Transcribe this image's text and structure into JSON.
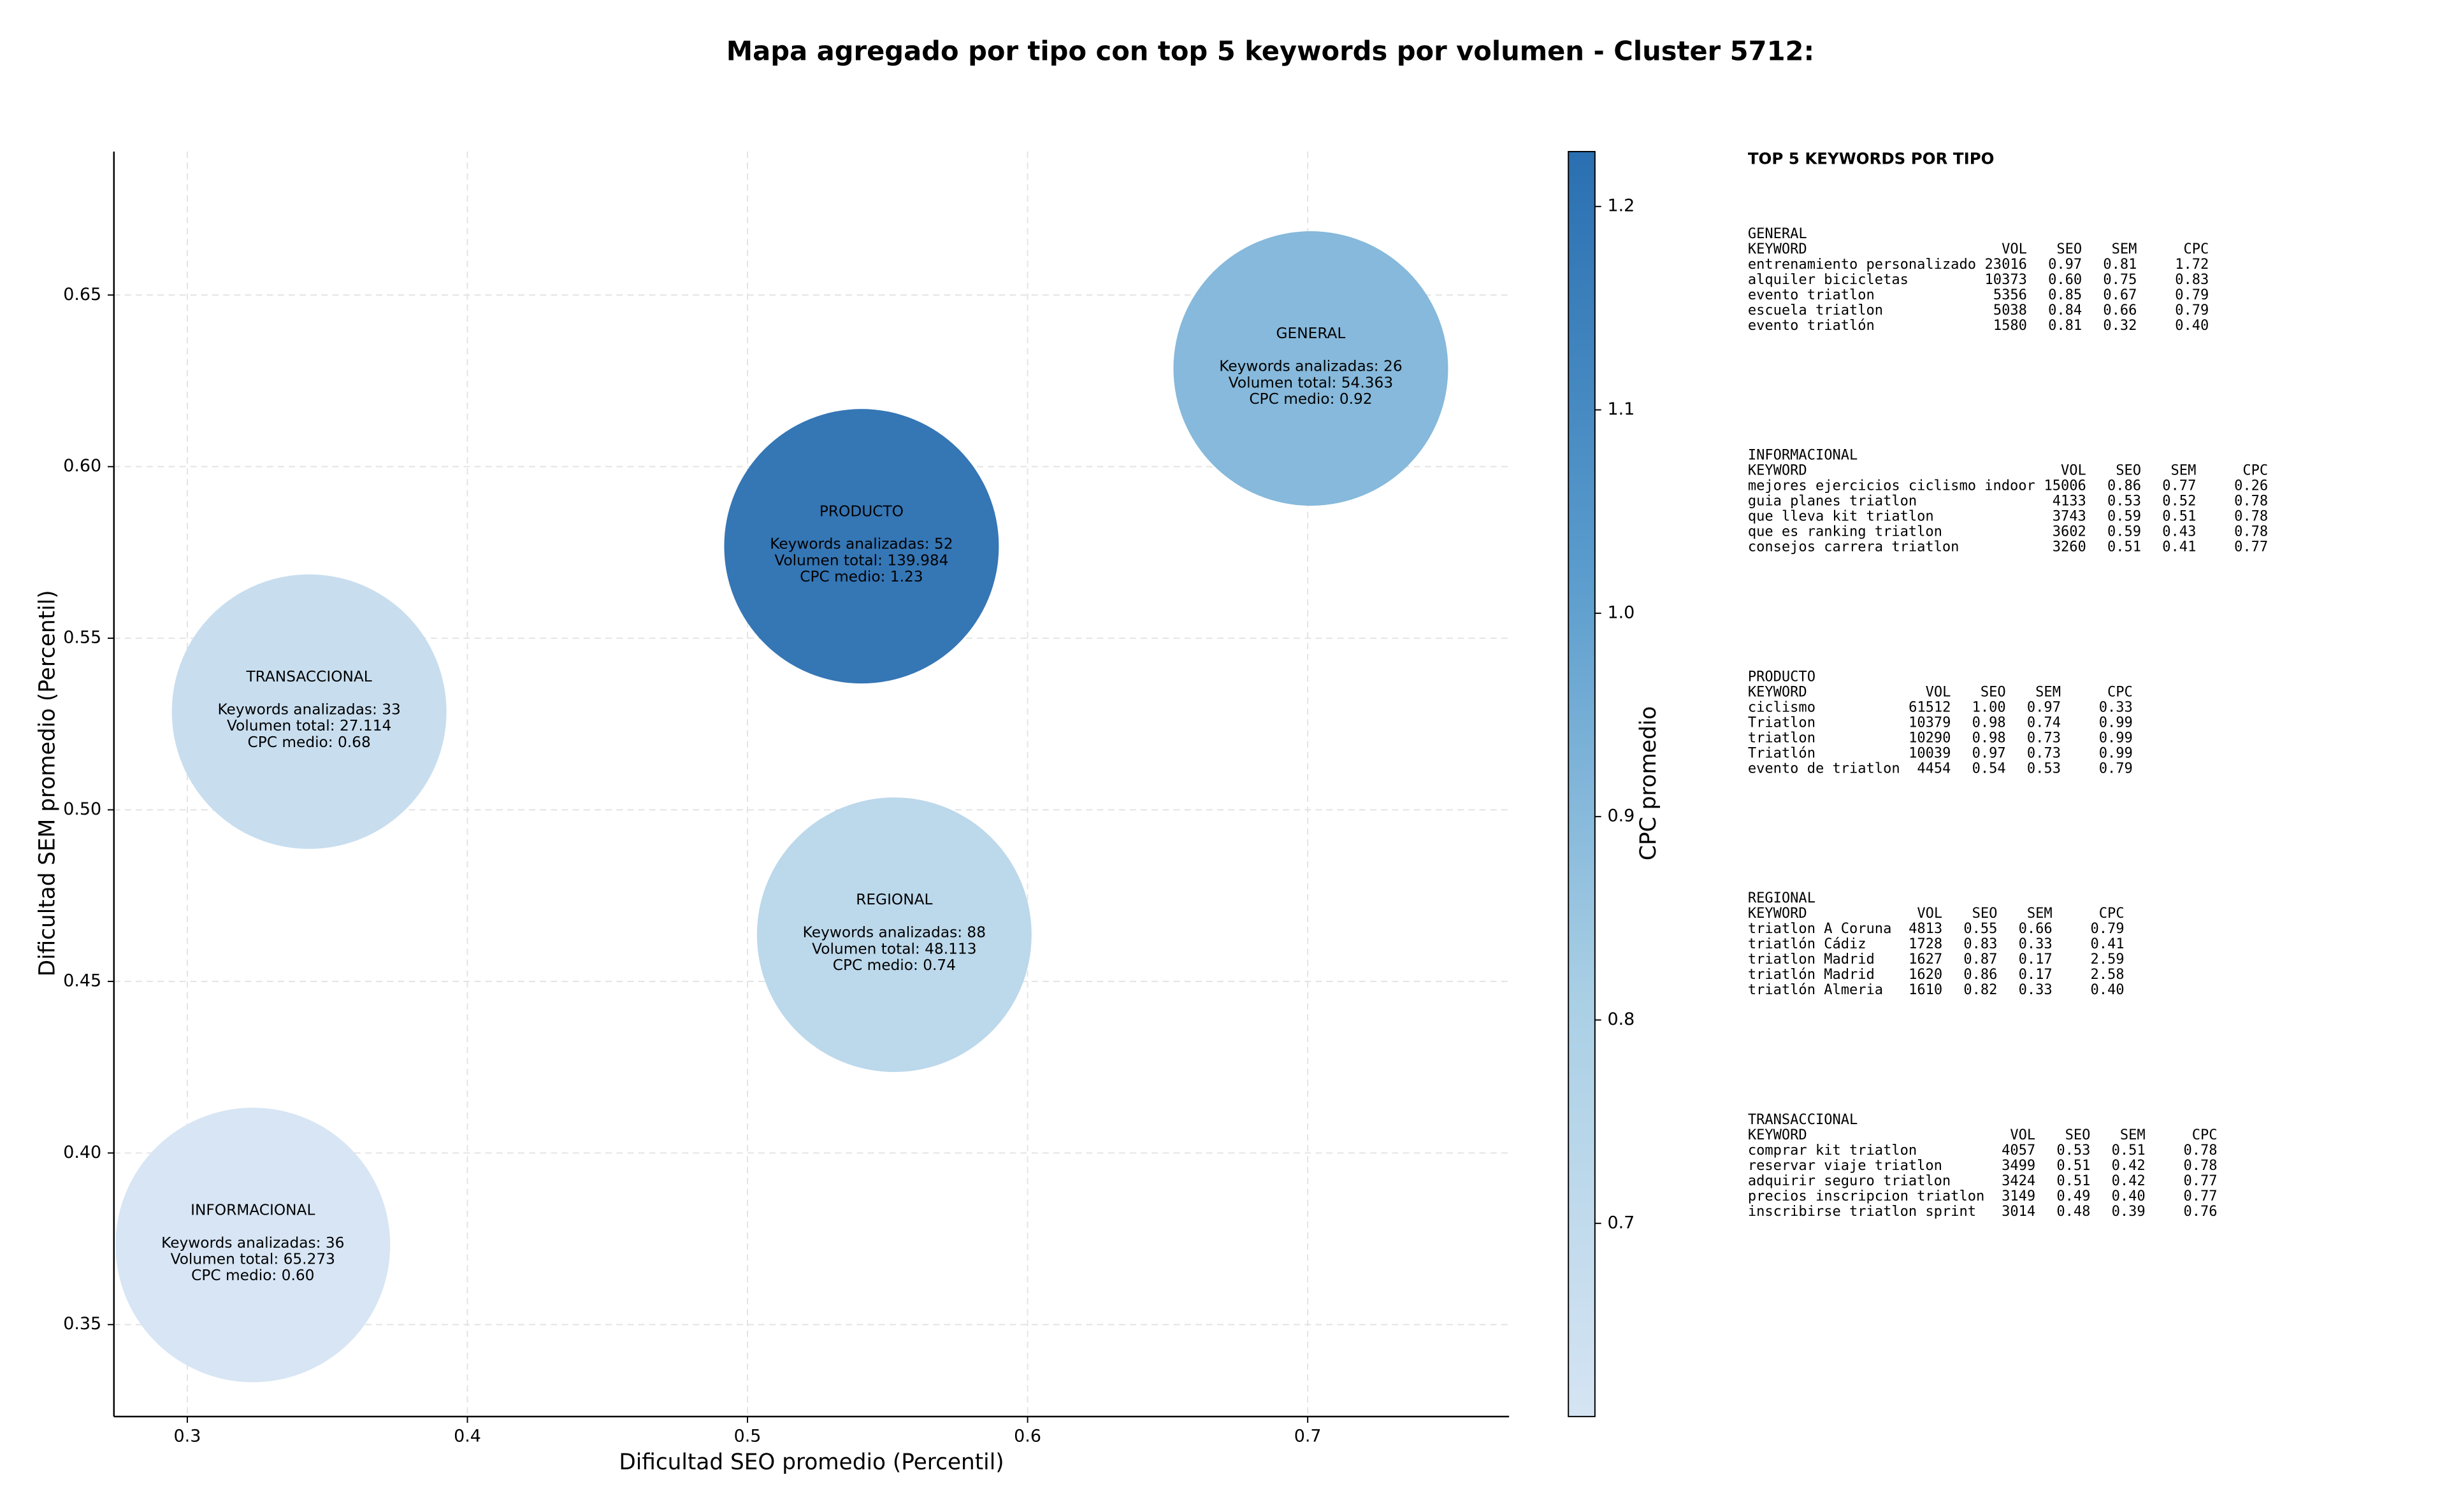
{
  "chart_data": {
    "type": "bubble",
    "title": "Mapa agregado por tipo con top 5 keywords por volumen - Cluster 5712:",
    "xlabel": "Dificultad SEO promedio (Percentil)",
    "ylabel": "Dificultad SEM promedio (Percentil)",
    "xlim": [
      0.2738,
      0.7719
    ],
    "ylim": [
      0.3232,
      0.6918
    ],
    "xticks": [
      0.3,
      0.4,
      0.5,
      0.6,
      0.7
    ],
    "yticks": [
      0.35,
      {
        "value": 0.4,
        "label": "0.40"
      },
      0.45,
      {
        "value": 0.5,
        "label": "0.50"
      },
      0.55,
      {
        "value": 0.6,
        "label": "0.60"
      },
      0.65
    ],
    "grid": true,
    "categories": [
      "GENERAL",
      "PRODUCTO",
      "TRANSACCIONAL",
      "REGIONAL",
      "INFORMACIONAL"
    ],
    "x": [
      0.7011,
      0.5407,
      0.3435,
      0.5524,
      0.3234
    ],
    "y": [
      0.6286,
      0.5768,
      0.5286,
      0.4636,
      0.3732
    ],
    "cpc": [
      0.92,
      1.23,
      0.68,
      0.74,
      0.6
    ],
    "annotations": [
      [
        "Keywords analizadas: 26",
        "Volumen total: 54.363",
        "CPC medio: 0.92"
      ],
      [
        "Keywords analizadas: 52",
        "Volumen total: 139.984",
        "CPC medio: 1.23"
      ],
      [
        "Keywords analizadas: 33",
        "Volumen total: 27.114",
        "CPC medio: 0.68"
      ],
      [
        "Keywords analizadas: 88",
        "Volumen total: 48.113",
        "CPC medio: 0.74"
      ],
      [
        "Keywords analizadas: 36",
        "Volumen total: 65.273",
        "CPC medio: 0.60"
      ]
    ],
    "colorbar": {
      "label": "CPC promedio",
      "clim": [
        0.605,
        1.227
      ],
      "ticks": [
        0.7,
        0.8,
        0.9,
        {
          "value": 1,
          "label": "1.0"
        },
        1.1,
        1.2
      ],
      "colormap": [
        "#d5e4f3",
        "#a9cfe5",
        "#5a9ccd",
        "#2a6fb1"
      ]
    }
  },
  "keyword_table": {
    "title": "TOP 5 KEYWORDS POR TIPO",
    "columns": [
      "KEYWORD",
      "VOL",
      "SEO",
      "SEM",
      "CPC"
    ],
    "sections": [
      {
        "name": "GENERAL",
        "rows": [
          [
            "entrenamiento personalizado",
            23016,
            "0.97",
            "0.81",
            "1.72"
          ],
          [
            "alquiler bicicletas",
            10373,
            "0.60",
            "0.75",
            "0.83"
          ],
          [
            "evento triatlon",
            5356,
            "0.85",
            "0.67",
            "0.79"
          ],
          [
            "escuela triatlon",
            5038,
            "0.84",
            "0.66",
            "0.79"
          ],
          [
            "evento triatlón",
            1580,
            "0.81",
            "0.32",
            "0.40"
          ]
        ]
      },
      {
        "name": "INFORMACIONAL",
        "rows": [
          [
            "mejores ejercicios ciclismo indoor",
            15006,
            "0.86",
            "0.77",
            "0.26"
          ],
          [
            "guia planes triatlon",
            4133,
            "0.53",
            "0.52",
            "0.78"
          ],
          [
            "que lleva kit triatlon",
            3743,
            "0.59",
            "0.51",
            "0.78"
          ],
          [
            "que es ranking triatlon",
            3602,
            "0.59",
            "0.43",
            "0.78"
          ],
          [
            "consejos carrera triatlon",
            3260,
            "0.51",
            "0.41",
            "0.77"
          ]
        ]
      },
      {
        "name": "PRODUCTO",
        "rows": [
          [
            "ciclismo",
            61512,
            "1.00",
            "0.97",
            "0.33"
          ],
          [
            "Triatlon",
            10379,
            "0.98",
            "0.74",
            "0.99"
          ],
          [
            "triatlon",
            10290,
            "0.98",
            "0.73",
            "0.99"
          ],
          [
            "Triatlón",
            10039,
            "0.97",
            "0.73",
            "0.99"
          ],
          [
            "evento de triatlon",
            4454,
            "0.54",
            "0.53",
            "0.79"
          ]
        ]
      },
      {
        "name": "REGIONAL",
        "rows": [
          [
            "triatlon A Coruna",
            4813,
            "0.55",
            "0.66",
            "0.79"
          ],
          [
            "triatlón Cádiz",
            1728,
            "0.83",
            "0.33",
            "0.41"
          ],
          [
            "triatlon Madrid",
            1627,
            "0.87",
            "0.17",
            "2.59"
          ],
          [
            "triatlón Madrid",
            1620,
            "0.86",
            "0.17",
            "2.58"
          ],
          [
            "triatlón Almeria",
            1610,
            "0.82",
            "0.33",
            "0.40"
          ]
        ]
      },
      {
        "name": "TRANSACCIONAL",
        "rows": [
          [
            "comprar kit triatlon",
            4057,
            "0.53",
            "0.51",
            "0.78"
          ],
          [
            "reservar viaje triatlon",
            3499,
            "0.51",
            "0.42",
            "0.78"
          ],
          [
            "adquirir seguro triatlon",
            3424,
            "0.51",
            "0.42",
            "0.77"
          ],
          [
            "precios inscripcion triatlon",
            3149,
            "0.49",
            "0.40",
            "0.77"
          ],
          [
            "inscribirse triatlon sprint",
            3014,
            "0.48",
            "0.39",
            "0.76"
          ]
        ]
      }
    ]
  }
}
